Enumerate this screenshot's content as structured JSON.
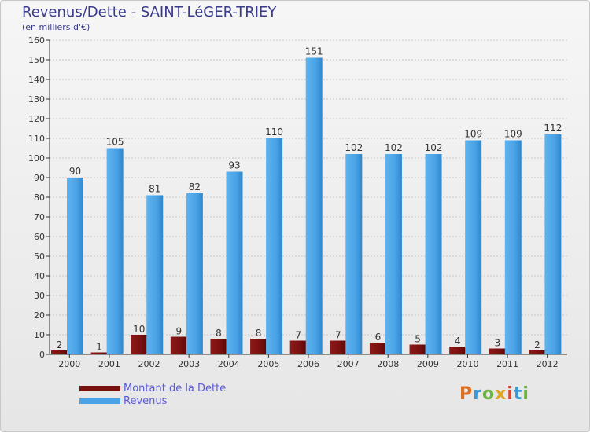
{
  "title": "Revenus/Dette - SAINT-LéGER-TRIEY",
  "subtitle": "(en milliers d'€)",
  "logo": {
    "text": "Proxiti",
    "letters": [
      "P",
      "r",
      "o",
      "x",
      "i",
      "t",
      "i"
    ]
  },
  "legend": [
    {
      "label": "Montant de la Dette",
      "color": "#7a0f0f"
    },
    {
      "label": "Revenus",
      "color": "#4aa3e6"
    }
  ],
  "colors": {
    "dette": "#7a0f0f",
    "revenus": "#4aa3e6",
    "axis": "#333333",
    "grid": "#c8c8c8"
  },
  "chart_data": {
    "type": "bar",
    "title": "Revenus/Dette - SAINT-LéGER-TRIEY",
    "ylabel": "(en milliers d'€)",
    "xlabel": "",
    "categories": [
      "2000",
      "2001",
      "2002",
      "2003",
      "2004",
      "2005",
      "2006",
      "2007",
      "2008",
      "2009",
      "2010",
      "2011",
      "2012"
    ],
    "series": [
      {
        "name": "Montant de la Dette",
        "values": [
          2,
          1,
          10,
          9,
          8,
          8,
          7,
          7,
          6,
          5,
          4,
          3,
          2
        ]
      },
      {
        "name": "Revenus",
        "values": [
          90,
          105,
          81,
          82,
          93,
          110,
          151,
          102,
          102,
          102,
          109,
          109,
          112
        ]
      }
    ],
    "ylim": [
      0,
      160
    ],
    "yticks": [
      0,
      10,
      20,
      30,
      40,
      50,
      60,
      70,
      80,
      90,
      100,
      110,
      120,
      130,
      140,
      150,
      160
    ],
    "grid": true,
    "legend_position": "bottom-left"
  }
}
